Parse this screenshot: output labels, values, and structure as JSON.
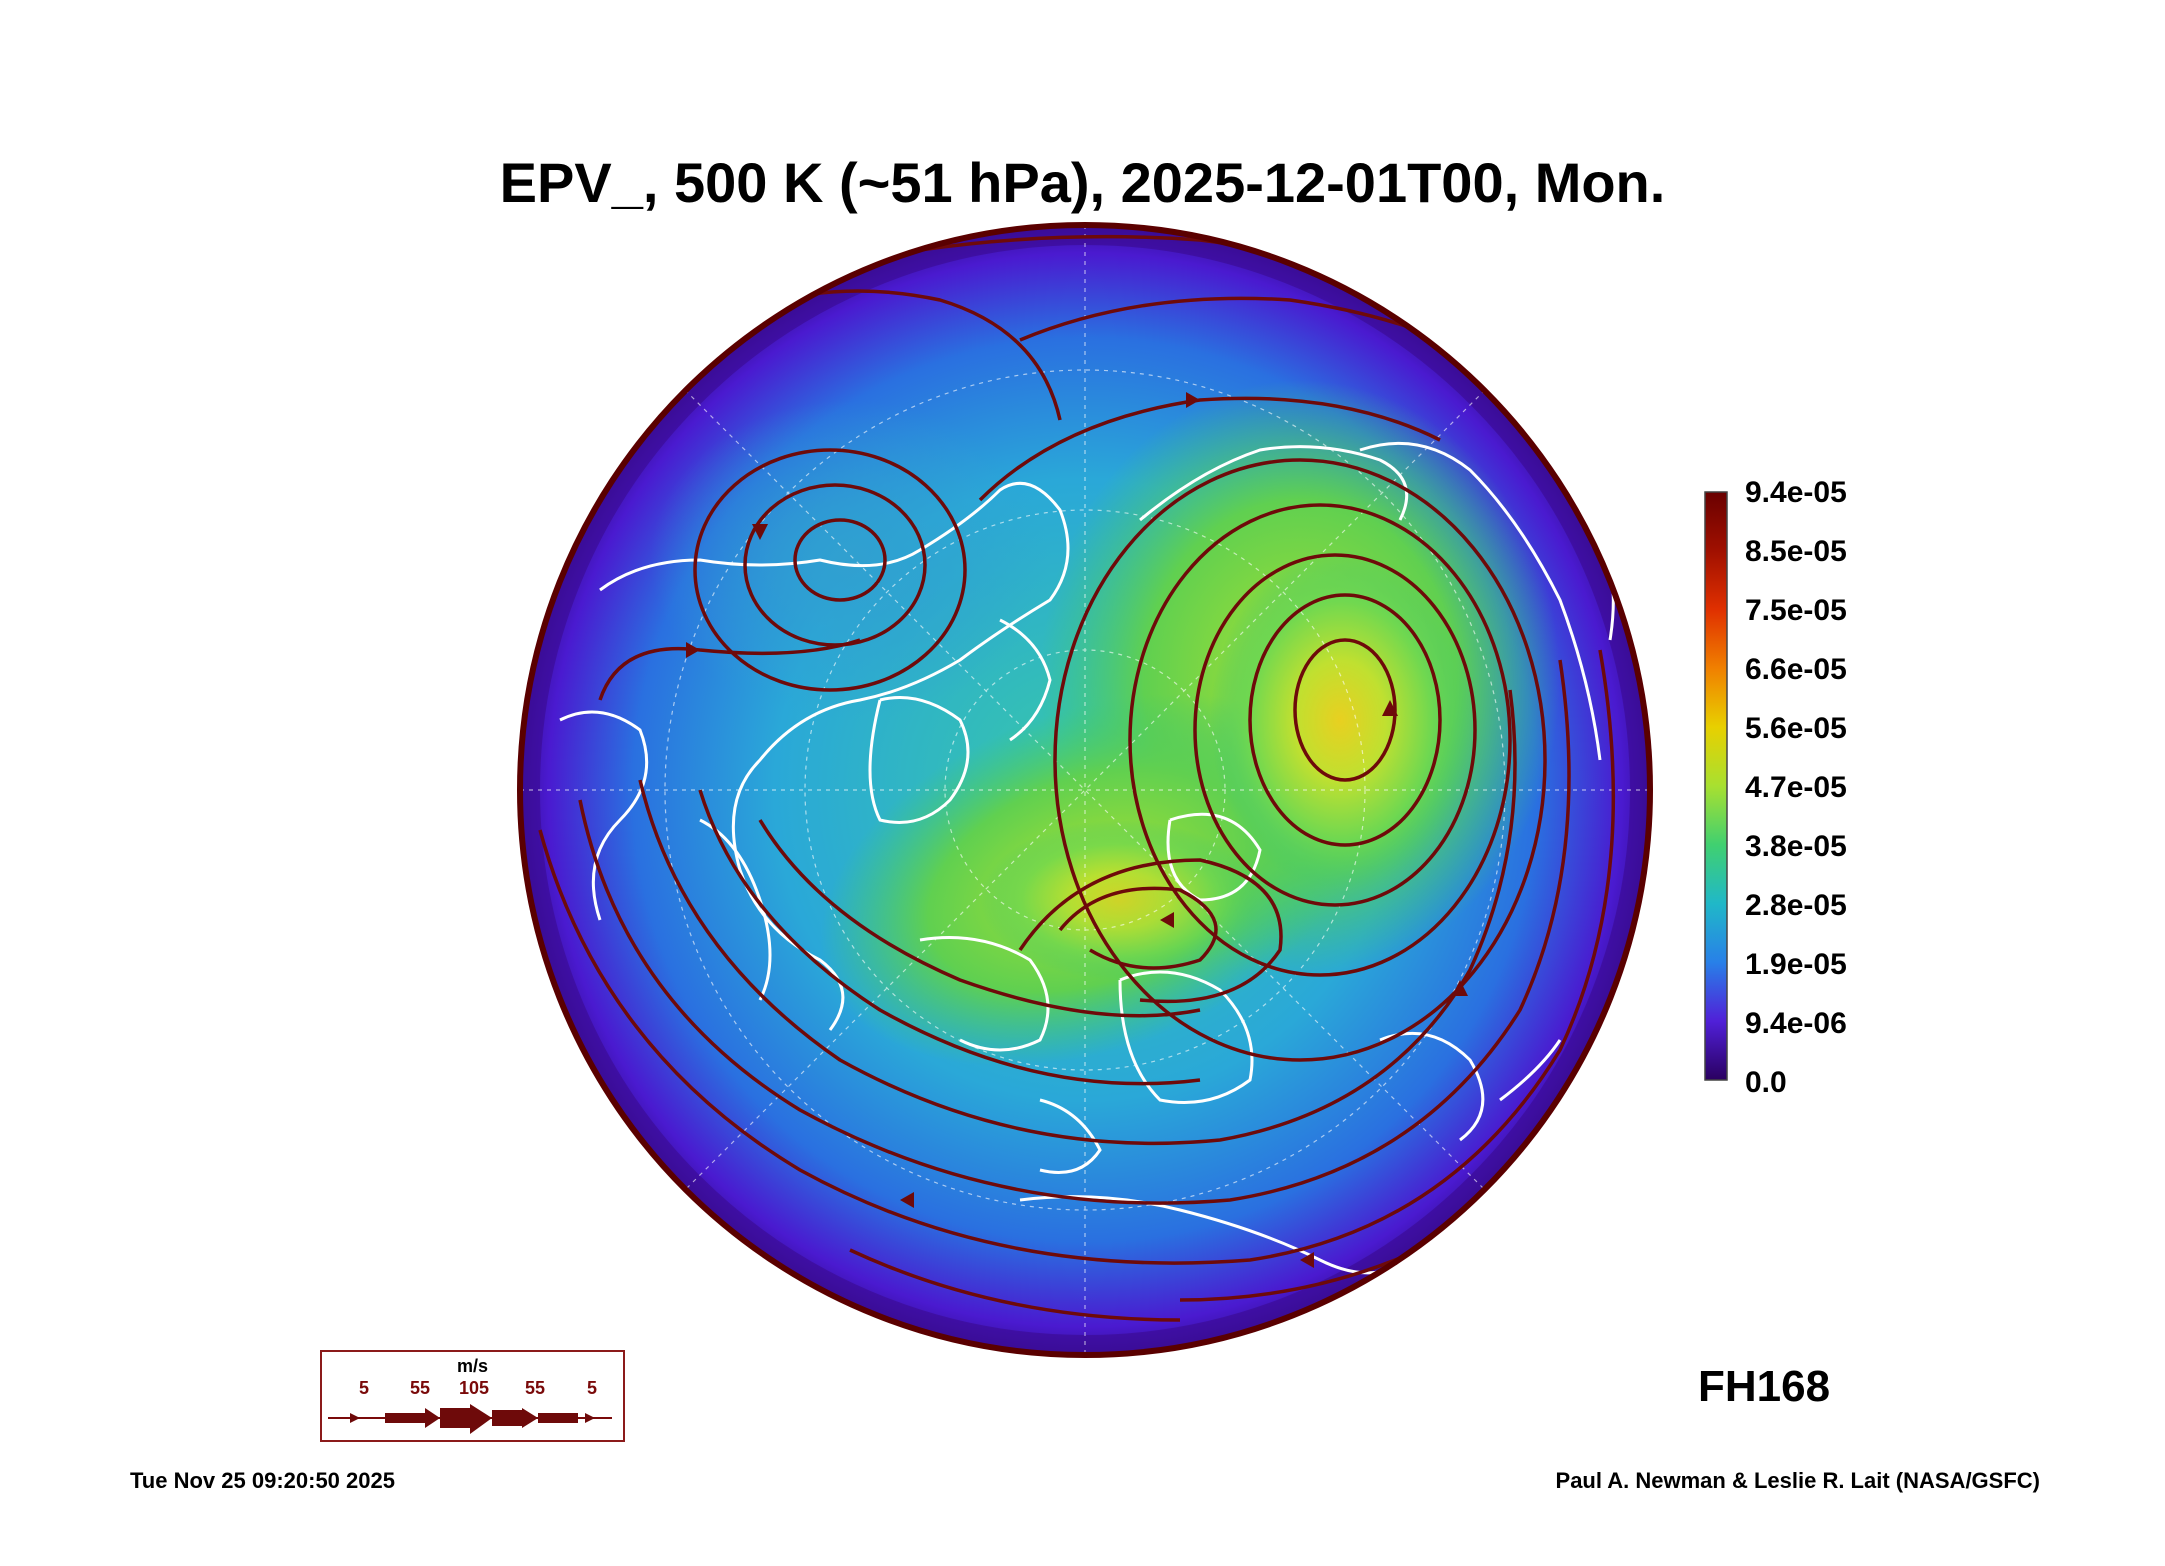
{
  "title": "EPV_, 500 K (~51 hPa), 2025-12-01T00, Mon.",
  "forecast_hour": "FH168",
  "timestamp": "Tue Nov 25 09:20:50 2025",
  "credit": "Paul A. Newman & Leslie R. Lait (NASA/GSFC)",
  "colorbar": {
    "labels": [
      "9.4e-05",
      "8.5e-05",
      "7.5e-05",
      "6.6e-05",
      "5.6e-05",
      "4.7e-05",
      "3.8e-05",
      "2.8e-05",
      "1.9e-05",
      "9.4e-06",
      "0.0"
    ],
    "colors": [
      "#6a0000",
      "#a01000",
      "#e03000",
      "#f08000",
      "#e8d000",
      "#a8e030",
      "#40d070",
      "#20b8c8",
      "#2880e8",
      "#5020d8",
      "#2a0060"
    ]
  },
  "wind_legend": {
    "unit": "m/s",
    "values": [
      "5",
      "55",
      "105",
      "55",
      "5"
    ],
    "color": "#6e0a0a"
  },
  "map": {
    "projection": "north-polar-stereographic",
    "coastline_color": "#ffffff",
    "streamline_color": "#6e0a0a"
  }
}
